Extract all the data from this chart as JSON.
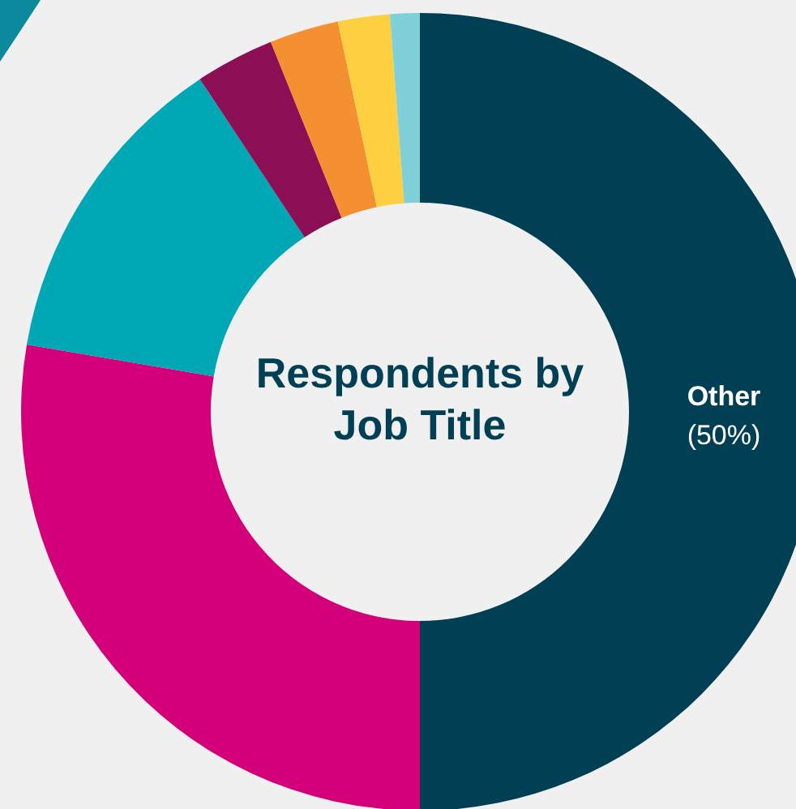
{
  "chart_data": {
    "type": "donut",
    "title": "Respondents by Job Title",
    "categories": [
      "Other",
      null,
      null,
      null,
      null,
      null,
      null
    ],
    "values": [
      50,
      27.7,
      13,
      3.2,
      2.8,
      2.1,
      1.2
    ],
    "colors": [
      "#003f54",
      "#d4007a",
      "#00a7b5",
      "#8c0f55",
      "#f59032",
      "#fdcf41",
      "#7fd0d8"
    ],
    "value_labels": [
      "(50%)",
      null,
      null,
      null,
      null,
      null,
      null
    ]
  }
}
